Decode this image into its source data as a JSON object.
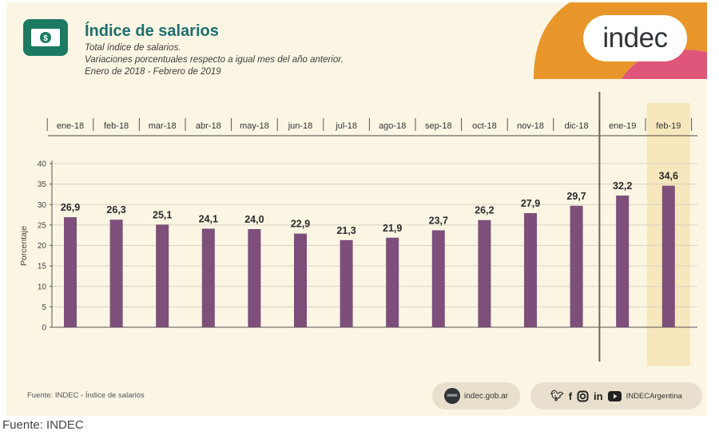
{
  "header": {
    "title": "Índice de salarios",
    "subtitle_lines": [
      "Total índice de salarios.",
      "Variaciones porcentuales respecto a igual mes del año anterior.",
      "Enero de 2018 - Febrero de 2019"
    ],
    "logo_text": "indec"
  },
  "colors": {
    "bar": "#7d4f7a",
    "title": "#1e6f70",
    "highlight": "#f7e7bd",
    "orange": "#e8962a",
    "pink": "#e0567a",
    "icon_green": "#1c7a62"
  },
  "chart_data": {
    "type": "bar",
    "categories": [
      "ene-18",
      "feb-18",
      "mar-18",
      "abr-18",
      "may-18",
      "jun-18",
      "jul-18",
      "ago-18",
      "sep-18",
      "oct-18",
      "nov-18",
      "dic-18",
      "ene-19",
      "feb-19"
    ],
    "values": [
      26.9,
      26.3,
      25.1,
      24.1,
      24.0,
      22.9,
      21.3,
      21.9,
      23.7,
      26.2,
      27.9,
      29.7,
      32.2,
      34.6
    ],
    "value_labels": [
      "26,9",
      "26,3",
      "25,1",
      "24,1",
      "24,0",
      "22,9",
      "21,3",
      "21,9",
      "23,7",
      "26,2",
      "27,9",
      "29,7",
      "32,2",
      "34,6"
    ],
    "ylabel": "Porcentaje",
    "ylim": [
      0,
      40
    ],
    "yticks": [
      0,
      5,
      10,
      15,
      20,
      25,
      30,
      35,
      40
    ],
    "grid": true,
    "highlighted_category": "feb-19",
    "divider_after": "dic-18"
  },
  "footer": {
    "source": "Fuente: INDEC - Índice de salarios",
    "www_label": "www",
    "website": "indec.gob.ar",
    "social_handle": "INDECArgentina",
    "social_icons": [
      "twitter-icon",
      "facebook-icon",
      "instagram-icon",
      "linkedin-icon",
      "youtube-icon"
    ]
  },
  "outer_source": "Fuente: INDEC"
}
